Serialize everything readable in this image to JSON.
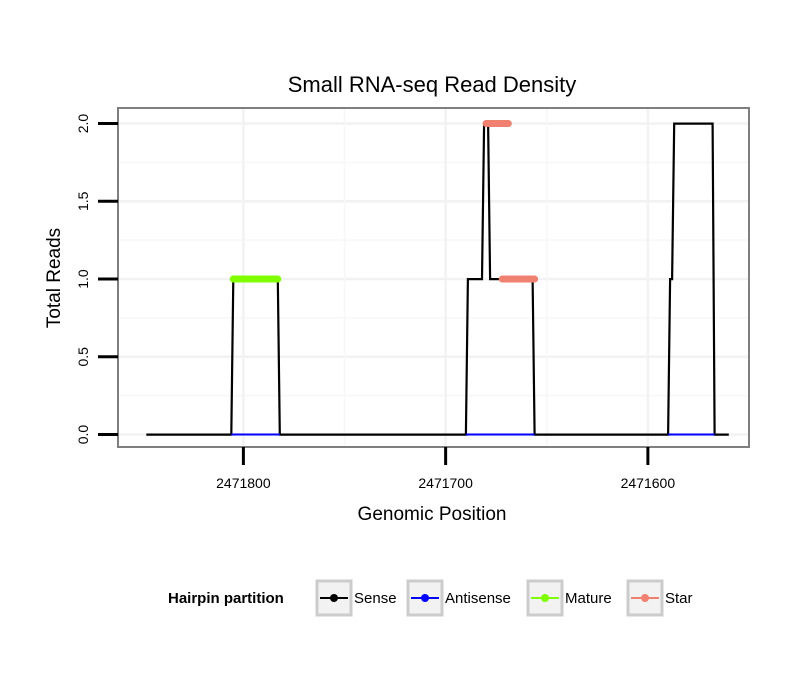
{
  "chart_data": {
    "type": "line",
    "title": "Small RNA-seq Read Density",
    "xlabel": "Genomic Position",
    "ylabel": "Total Reads",
    "xlim_reversed": [
      2471862,
      2471550
    ],
    "ylim": [
      -0.08,
      2.1
    ],
    "x_ticks": [
      2471800,
      2471700,
      2471600
    ],
    "x_tick_labels": [
      "2471800",
      "2471700",
      "2471600"
    ],
    "y_ticks": [
      0.0,
      0.5,
      1.0,
      1.5,
      2.0
    ],
    "y_tick_labels": [
      "0.0",
      "0.5",
      "1.0",
      "1.5",
      "2.0"
    ],
    "grid": true,
    "series": [
      {
        "name": "Sense",
        "color": "#000000",
        "x": [
          2471848,
          2471806,
          2471805,
          2471783,
          2471782,
          2471690,
          2471689,
          2471682,
          2471681,
          2471679,
          2471678,
          2471671,
          2471670,
          2471657,
          2471656,
          2471590,
          2471589,
          2471588,
          2471587,
          2471568,
          2471567,
          2471560
        ],
        "y": [
          0,
          0,
          1,
          1,
          0,
          0,
          1,
          1,
          2,
          2,
          1,
          1,
          1,
          1,
          0,
          0,
          1,
          1,
          2,
          2,
          0,
          0
        ]
      },
      {
        "name": "Antisense",
        "color": "#0000ff",
        "segments": [
          [
            2471806,
            2471782
          ],
          [
            2471690,
            2471656
          ],
          [
            2471590,
            2471567
          ]
        ],
        "value": 0
      },
      {
        "name": "Mature",
        "color": "#7fff00",
        "segments": [
          [
            2471805,
            2471783
          ]
        ],
        "value": 1
      },
      {
        "name": "Star",
        "color": "#f08070",
        "segments": [
          [
            2471680,
            2471669
          ],
          [
            2471672,
            2471656
          ]
        ],
        "values": [
          2,
          1
        ]
      }
    ],
    "legend": {
      "title": "Hairpin partition",
      "position": "bottom",
      "entries": [
        {
          "label": "Sense",
          "color": "#000000"
        },
        {
          "label": "Antisense",
          "color": "#0000ff"
        },
        {
          "label": "Mature",
          "color": "#7fff00"
        },
        {
          "label": "Star",
          "color": "#f08070"
        }
      ]
    }
  }
}
